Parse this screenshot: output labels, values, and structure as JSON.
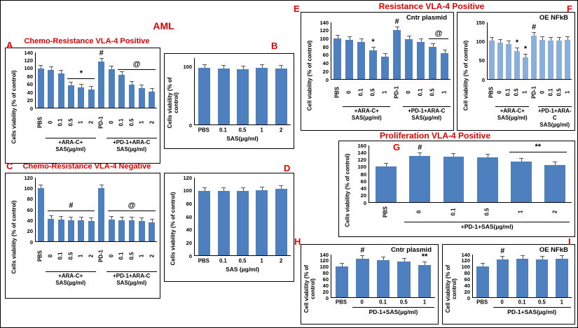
{
  "headings": {
    "aml": "AML",
    "chemo_pos": "Chemo-Resistance VLA-4 Positive",
    "chemo_neg": "Chemo-Resistance VLA-4 Negative",
    "resistance_pos": "Resistance VLA-4 Positive",
    "proliferation_pos": "Proliferation VLA-4 Positive"
  },
  "panel_letters": {
    "a": "A",
    "b": "B",
    "c": "C",
    "d": "D",
    "e": "E",
    "f": "F",
    "g": "G",
    "h": "H",
    "i": "I"
  },
  "colors": {
    "accent": "#E60000",
    "bar_default": "#4E7FBE",
    "bar_light": "#8AB0D9"
  },
  "chart_data": [
    {
      "id": "A",
      "type": "bar",
      "title": "Chemo-Resistance VLA-4 Positive",
      "subtitle": "",
      "ylabel": "Cells viability (% of control)",
      "ymax": 140,
      "ylim": [
        0,
        140
      ],
      "yticks": [
        0,
        20,
        40,
        60,
        80,
        100,
        120,
        140
      ],
      "rotate_x": true,
      "error_bars_shown": true,
      "categories": [
        "PBS",
        "0",
        "0.1",
        "0.5",
        "1",
        "2",
        "PD-1",
        "0",
        "0.1",
        "0.5",
        "1",
        "2"
      ],
      "values": [
        100,
        95,
        87,
        57,
        52,
        46,
        117,
        97,
        83,
        58,
        50,
        40
      ],
      "annotations": {
        "6": "#"
      },
      "sig_lines": [
        {
          "from": 3,
          "to": 5,
          "y": 72,
          "label": "*"
        },
        {
          "from": 8,
          "to": 11,
          "y": 96,
          "label": "@"
        }
      ],
      "groups": [
        {
          "from": 1,
          "to": 5,
          "lines": [
            "+ARA-C+",
            "SAS(µg/ml)"
          ]
        },
        {
          "from": 7,
          "to": 11,
          "lines": [
            "+PD-1+ARA-C",
            "SAS(µg/ml)"
          ]
        }
      ]
    },
    {
      "id": "B",
      "type": "bar",
      "title": "",
      "subtitle": "",
      "ylabel": "Cells viability (% of control)",
      "ymax": 115,
      "ylim": [
        0,
        115
      ],
      "yticks": [
        0,
        100
      ],
      "rotate_x": false,
      "error_bars_shown": true,
      "categories": [
        "PBS",
        "0.1",
        "0.5",
        "1",
        "2"
      ],
      "values": [
        98,
        97,
        96,
        98,
        97
      ],
      "xlabel": "SAS(µg/ml)"
    },
    {
      "id": "C",
      "type": "bar",
      "title": "Chemo-Resistance VLA-4 Negative",
      "subtitle": "",
      "ylabel": "Cells viability (% of control)",
      "ymax": 120,
      "ylim": [
        0,
        120
      ],
      "yticks": [
        0,
        20,
        40,
        60,
        80,
        100,
        120
      ],
      "rotate_x": true,
      "error_bars_shown": true,
      "categories": [
        "PBS",
        "0",
        "0.1",
        "0.5",
        "1",
        "2",
        "PD-1",
        "0",
        "0.1",
        "0.5",
        "1",
        "2"
      ],
      "values": [
        100,
        42,
        41,
        40,
        39,
        38,
        100,
        41,
        40,
        39,
        38,
        36
      ],
      "sig_lines": [
        {
          "from": 1,
          "to": 5,
          "y": 57,
          "label": "#"
        },
        {
          "from": 7,
          "to": 11,
          "y": 57,
          "label": "@"
        }
      ],
      "groups": [
        {
          "from": 1,
          "to": 5,
          "lines": [
            "+ARA-C+",
            "SAS(µg/ml)"
          ]
        },
        {
          "from": 7,
          "to": 11,
          "lines": [
            "+PD-1+ARA-C",
            "SAS(µg/ml)"
          ]
        }
      ]
    },
    {
      "id": "D",
      "type": "bar",
      "title": "",
      "subtitle": "",
      "ylabel": "Cells viability (% of control)",
      "ymax": 120,
      "ylim": [
        0,
        120
      ],
      "yticks": [
        0,
        20,
        40,
        60,
        80,
        100,
        120
      ],
      "rotate_x": false,
      "error_bars_shown": true,
      "categories": [
        "PBS",
        "0.1",
        "0.5",
        "1",
        "2"
      ],
      "values": [
        100,
        100,
        100,
        101,
        103
      ],
      "xlabel": "SAS (µg/ml)"
    },
    {
      "id": "E",
      "type": "bar",
      "title": "Resistance VLA-4 Positive",
      "subtitle": "Cntr plasmid",
      "ylabel": "Cell viability (% of control)",
      "ymax": 140,
      "ylim": [
        0,
        140
      ],
      "yticks": [
        0,
        20,
        40,
        60,
        80,
        100,
        120,
        140
      ],
      "rotate_x": true,
      "error_bars_shown": true,
      "categories": [
        "PBS",
        "0",
        "0.1",
        "0.5",
        "1",
        "PD-1",
        "0",
        "0.1",
        "0.5",
        "1"
      ],
      "values": [
        100,
        96,
        91,
        71,
        56,
        121,
        99,
        91,
        79,
        64
      ],
      "annotations": {
        "3": "*",
        "5": "#"
      },
      "sig_lines": [
        {
          "from": 8,
          "to": 9,
          "y": 98,
          "label": "@"
        }
      ],
      "groups": [
        {
          "from": 1,
          "to": 4,
          "lines": [
            "+ARA-C+",
            "SAS(µg/ml)"
          ]
        },
        {
          "from": 6,
          "to": 9,
          "lines": [
            "+PD-1+ARA-C",
            "SAS(µg/ml)"
          ]
        }
      ]
    },
    {
      "id": "F",
      "type": "bar",
      "title": "Resistance VLA-4 Positive",
      "subtitle": "OE NFkB",
      "bar_color": "#8AB0D9",
      "ylabel": "Cell viability (% of control)",
      "ymax": 150,
      "ylim": [
        0,
        150
      ],
      "yticks": [
        0,
        50,
        100,
        150
      ],
      "rotate_x": true,
      "error_bars_shown": true,
      "categories": [
        "PBS",
        "0",
        "0.1",
        "0.5",
        "1",
        "PD-1",
        "0",
        "0.1",
        "0.5",
        "1"
      ],
      "values": [
        102,
        97,
        92,
        75,
        57,
        114,
        104,
        102,
        102,
        104
      ],
      "annotations": {
        "3": "*",
        "4": "*",
        "5": "#"
      },
      "groups": [
        {
          "from": 1,
          "to": 4,
          "lines": [
            "+ARA-C+",
            "SAS(µg/ml)"
          ]
        },
        {
          "from": 6,
          "to": 9,
          "lines": [
            "+PD-1+ARA-C",
            "SAS(µg/ml)"
          ]
        }
      ]
    },
    {
      "id": "G",
      "type": "bar",
      "title": "Proliferation VLA-4 Positive",
      "subtitle": "",
      "ylabel": "Cells viability (% of control)",
      "ymax": 160,
      "ylim": [
        0,
        160
      ],
      "yticks": [
        0,
        20,
        40,
        60,
        80,
        100,
        120,
        140,
        160
      ],
      "rotate_x": true,
      "error_bars_shown": true,
      "categories": [
        "PBS",
        "0",
        "0.1",
        "0.5",
        "1",
        "2"
      ],
      "values": [
        100,
        131,
        129,
        126,
        115,
        105
      ],
      "annotations": {
        "1": "#"
      },
      "sig_lines": [
        {
          "from": 4,
          "to": 5,
          "y": 140,
          "label": "**"
        }
      ],
      "xlabel": "+PD-1+SAS(µg/ml)",
      "xlabel_span": {
        "from": 1,
        "to": 5
      }
    },
    {
      "id": "H",
      "type": "bar",
      "title": "",
      "subtitle": "Cntr plasmid",
      "ylabel": "Cell viability (% of control)",
      "ymax": 140,
      "ylim": [
        0,
        140
      ],
      "yticks": [
        0,
        20,
        40,
        60,
        80,
        100,
        120,
        140
      ],
      "rotate_x": false,
      "error_bars_shown": true,
      "categories": [
        "PBS",
        "0",
        "0.1",
        "0.5",
        "1"
      ],
      "values": [
        100,
        126,
        122,
        117,
        106
      ],
      "annotations": {
        "1": "#",
        "4": "**"
      },
      "xlabel": "PD-1+SAS(µg/ml)",
      "xlabel_span": {
        "from": 1,
        "to": 4
      }
    },
    {
      "id": "I",
      "type": "bar",
      "title": "",
      "subtitle": "OE NFkB",
      "ylabel": "Cell viability (% of control)",
      "ymax": 140,
      "ylim": [
        0,
        140
      ],
      "yticks": [
        0,
        20,
        40,
        60,
        80,
        100,
        120,
        140
      ],
      "rotate_x": false,
      "error_bars_shown": true,
      "categories": [
        "PBS",
        "0",
        "0.1",
        "0.5",
        "1"
      ],
      "values": [
        100,
        124,
        126,
        125,
        126
      ],
      "annotations": {
        "1": "#"
      },
      "xlabel": "PD-1+SAS(µg/ml)",
      "xlabel_span": {
        "from": 1,
        "to": 4
      }
    }
  ]
}
